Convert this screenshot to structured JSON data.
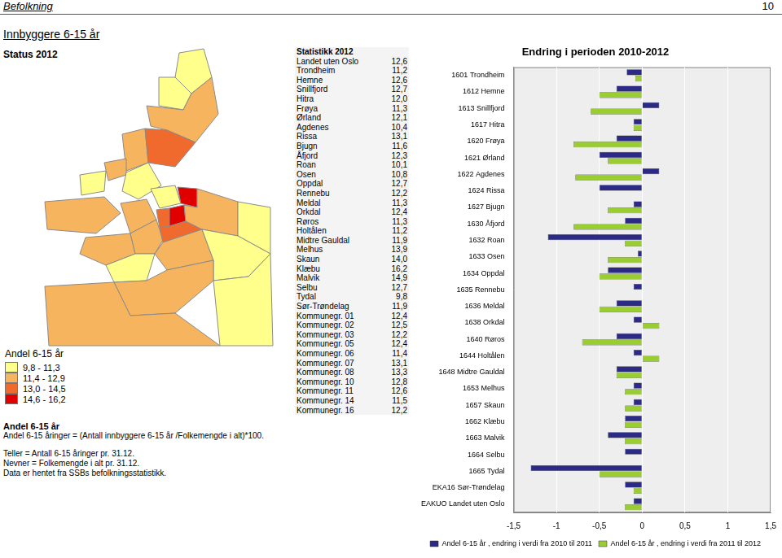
{
  "page": {
    "header": {
      "section": "Befolkning",
      "page_number": "10"
    },
    "title": "Innbyggere 6-15 år",
    "status": "Status 2012",
    "table": {
      "title": "Statistikk 2012",
      "rows": [
        [
          "Landet uten Oslo",
          "12,6"
        ],
        [
          "Trondheim",
          "11,2"
        ],
        [
          "Hemne",
          "12,6"
        ],
        [
          "Snillfjord",
          "12,7"
        ],
        [
          "Hitra",
          "12,0"
        ],
        [
          "Frøya",
          "11,3"
        ],
        [
          "Ørland",
          "12,1"
        ],
        [
          "Agdenes",
          "10,4"
        ],
        [
          "Rissa",
          "13,1"
        ],
        [
          "Bjugn",
          "11,6"
        ],
        [
          "Åfjord",
          "12,3"
        ],
        [
          "Roan",
          "10,1"
        ],
        [
          "Osen",
          "10,8"
        ],
        [
          "Oppdal",
          "12,7"
        ],
        [
          "Rennebu",
          "12,2"
        ],
        [
          "Meldal",
          "11,3"
        ],
        [
          "Orkdal",
          "12,4"
        ],
        [
          "Røros",
          "11,3"
        ],
        [
          "Holtålen",
          "11,2"
        ],
        [
          "Midtre Gauldal",
          "11,9"
        ],
        [
          "Melhus",
          "13,9"
        ],
        [
          "Skaun",
          "14,0"
        ],
        [
          "Klæbu",
          "16,2"
        ],
        [
          "Malvik",
          "14,9"
        ],
        [
          "Selbu",
          "12,7"
        ],
        [
          "Tydal",
          "9,8"
        ],
        [
          "Sør-Trøndelag",
          "11,9"
        ],
        [
          "Kommunegr. 01",
          "12,4"
        ],
        [
          "Kommunegr. 02",
          "12,5"
        ],
        [
          "Kommunegr. 03",
          "12,2"
        ],
        [
          "Kommunegr. 05",
          "12,4"
        ],
        [
          "Kommunegr. 06",
          "11,4"
        ],
        [
          "Kommunegr. 07",
          "13,1"
        ],
        [
          "Kommunegr. 08",
          "13,3"
        ],
        [
          "Kommunegr. 10",
          "12,8"
        ],
        [
          "Kommunegr. 11",
          "12,6"
        ],
        [
          "Kommunegr. 14",
          "11,5"
        ],
        [
          "Kommunegr. 16",
          "12,2"
        ]
      ]
    },
    "map_legend": {
      "title": "Andel 6-15 år",
      "classes": [
        {
          "label": "9,8 - 11,3",
          "min": 9.8,
          "max": 11.3,
          "color": "#ffff8c"
        },
        {
          "label": "11,4 - 12,9",
          "min": 11.4,
          "max": 12.9,
          "color": "#f7b45e"
        },
        {
          "label": "13,0 - 14,5",
          "min": 13.0,
          "max": 14.5,
          "color": "#f06a2e"
        },
        {
          "label": "14,6 - 16,2",
          "min": 14.6,
          "max": 16.2,
          "color": "#e00000"
        }
      ]
    },
    "notes": [
      "Andel 6-15 år",
      "Andel 6-15 åringer = (Antall innbyggere 6-15 år /Folkemengde i alt)*100.",
      "Teller = Antall 6-15 åringer pr. 31.12.",
      "Nevner = Folkemengde i alt pr. 31.12.",
      "Data er hentet fra SSBs befolkningsstatistikk."
    ]
  },
  "chart_data": {
    "type": "bar",
    "orientation": "horizontal",
    "title": "Endring i perioden 2010-2012",
    "categories": [
      "1601 Trondheim",
      "1612 Hemne",
      "1613 Snillfjord",
      "1617 Hitra",
      "1620 Frøya",
      "1621 Ørland",
      "1622 Agdenes",
      "1624 Rissa",
      "1627 Bjugn",
      "1630 Åfjord",
      "1632 Roan",
      "1633 Osen",
      "1634 Oppdal",
      "1635 Rennebu",
      "1636 Meldal",
      "1638 Orkdal",
      "1640 Røros",
      "1644 Holtålen",
      "1648 Midtre Gauldal",
      "1653 Melhus",
      "1657 Skaun",
      "1662 Klæbu",
      "1663 Malvik",
      "1664 Selbu",
      "1665 Tydal",
      "EKA16 Sør-Trøndelag",
      "EAKUO Landet uten Oslo"
    ],
    "series": [
      {
        "name": "Andel 6-15 år , endring i verdi fra 2010 til 2011",
        "color": "#2b2b86",
        "values": [
          -0.18,
          -0.3,
          0.2,
          -0.1,
          -0.3,
          -0.5,
          0.2,
          -0.5,
          -0.1,
          -0.2,
          -1.1,
          -0.05,
          -0.4,
          -0.1,
          -0.3,
          -0.1,
          -0.3,
          -0.1,
          -0.3,
          -0.1,
          -0.1,
          -0.2,
          -0.4,
          -0.2,
          -1.3,
          -0.2,
          -0.1
        ]
      },
      {
        "name": "Andel 6-15 år , endring i verdi fra 2011 til 2012",
        "color": "#9acd32",
        "values": [
          -0.08,
          -0.5,
          -0.6,
          -0.1,
          -0.8,
          -0.4,
          -0.78,
          0.0,
          -0.4,
          -0.8,
          -0.2,
          -0.4,
          -0.5,
          0.0,
          -0.5,
          0.2,
          -0.7,
          0.2,
          -0.3,
          -0.2,
          -0.2,
          -0.2,
          -0.2,
          0.0,
          -0.5,
          -0.1,
          -0.2
        ]
      }
    ],
    "xlim": [
      -1.5,
      1.5
    ],
    "xticks": [
      {
        "value": -1.5,
        "label": "-1,5"
      },
      {
        "value": -1,
        "label": "-1"
      },
      {
        "value": -0.5,
        "label": "-0,5"
      },
      0,
      {
        "value": 0.5,
        "label": "0,5"
      },
      1,
      {
        "value": 1.5,
        "label": "1,5"
      }
    ],
    "grid": true,
    "legend": "bottom"
  }
}
